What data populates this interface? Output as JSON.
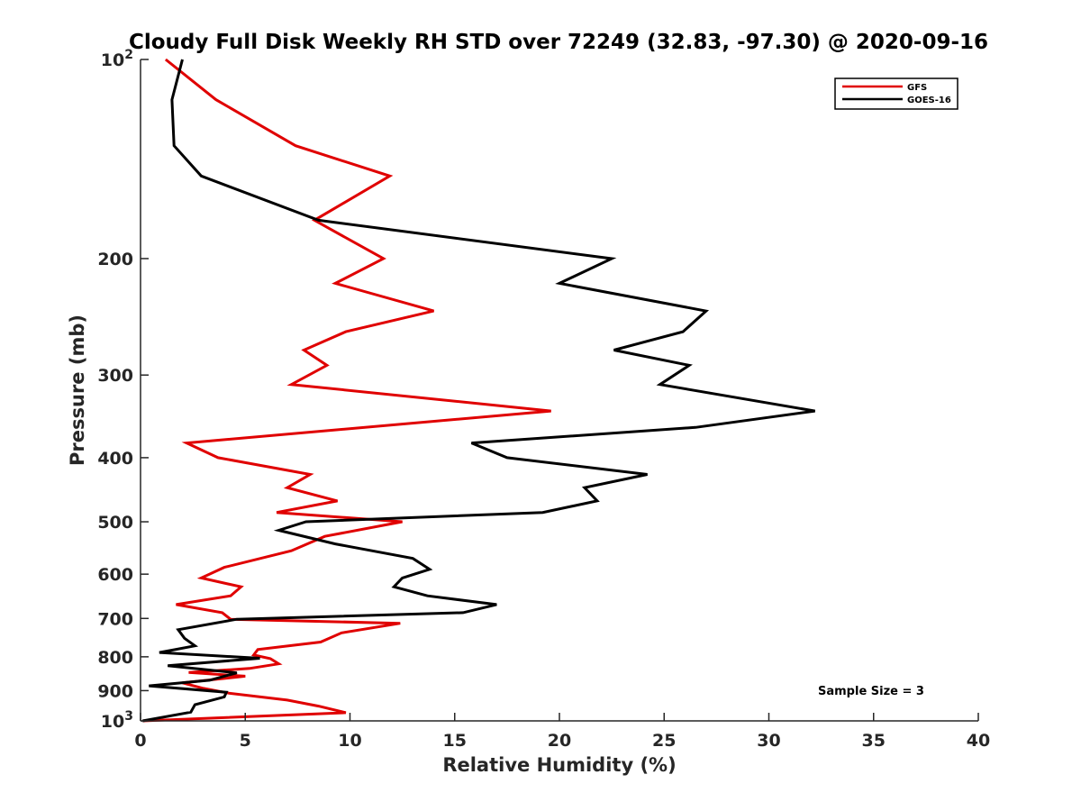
{
  "chart_data": {
    "type": "line",
    "title": "Cloudy Full Disk Weekly RH STD over 72249 (32.83, -97.30) @ 2020-09-16",
    "xlabel": "Relative Humidity (%)",
    "ylabel": "Pressure (mb)",
    "xlim": [
      0,
      40
    ],
    "ylim": [
      100,
      1000
    ],
    "y_scale": "log",
    "y_reversed": true,
    "x_ticks": [
      "0",
      "5",
      "10",
      "15",
      "20",
      "25",
      "30",
      "35",
      "40"
    ],
    "y_ticks": [
      {
        "value": 100,
        "base": "10",
        "exp": "2"
      },
      {
        "value": 200,
        "label": "200"
      },
      {
        "value": 300,
        "label": "300"
      },
      {
        "value": 400,
        "label": "400"
      },
      {
        "value": 500,
        "label": "500"
      },
      {
        "value": 600,
        "label": "600"
      },
      {
        "value": 700,
        "label": "700"
      },
      {
        "value": 800,
        "label": "800"
      },
      {
        "value": 900,
        "label": "900"
      },
      {
        "value": 1000,
        "base": "10",
        "exp": "3"
      }
    ],
    "grid": false,
    "legend_position": "top-right",
    "series": [
      {
        "name": "GFS",
        "color": "#e00000",
        "points": [
          [
            1.2,
            100
          ],
          [
            3.6,
            115
          ],
          [
            7.4,
            135
          ],
          [
            11.9,
            150
          ],
          [
            8.3,
            175
          ],
          [
            11.6,
            200
          ],
          [
            9.3,
            218
          ],
          [
            14.0,
            240
          ],
          [
            9.8,
            258
          ],
          [
            7.8,
            275
          ],
          [
            8.9,
            290
          ],
          [
            7.2,
            310
          ],
          [
            19.6,
            340
          ],
          [
            2.2,
            380
          ],
          [
            3.7,
            400
          ],
          [
            8.1,
            424
          ],
          [
            7.0,
            444
          ],
          [
            9.4,
            465
          ],
          [
            6.5,
            484
          ],
          [
            12.5,
            500
          ],
          [
            8.8,
            526
          ],
          [
            7.2,
            553
          ],
          [
            4.0,
            586
          ],
          [
            2.9,
            608
          ],
          [
            4.8,
            627
          ],
          [
            4.3,
            647
          ],
          [
            1.7,
            667
          ],
          [
            3.9,
            686
          ],
          [
            4.3,
            702
          ],
          [
            12.4,
            712
          ],
          [
            9.6,
            736
          ],
          [
            8.6,
            760
          ],
          [
            5.6,
            780
          ],
          [
            5.4,
            795
          ],
          [
            6.2,
            805
          ],
          [
            6.6,
            820
          ],
          [
            5.2,
            833
          ],
          [
            2.3,
            845
          ],
          [
            5.0,
            856
          ],
          [
            2.0,
            876
          ],
          [
            3.0,
            893
          ],
          [
            4.2,
            908
          ],
          [
            7.0,
            930
          ],
          [
            8.5,
            950
          ],
          [
            9.8,
            972
          ],
          [
            0.1,
            1000
          ]
        ]
      },
      {
        "name": "GOES-16",
        "color": "#000000",
        "points": [
          [
            2.0,
            100
          ],
          [
            1.5,
            115
          ],
          [
            1.6,
            135
          ],
          [
            2.9,
            150
          ],
          [
            8.5,
            175
          ],
          [
            22.5,
            200
          ],
          [
            20.0,
            218
          ],
          [
            27.0,
            240
          ],
          [
            25.9,
            258
          ],
          [
            22.6,
            275
          ],
          [
            26.2,
            290
          ],
          [
            24.8,
            310
          ],
          [
            32.2,
            340
          ],
          [
            26.5,
            360
          ],
          [
            15.8,
            380
          ],
          [
            17.5,
            400
          ],
          [
            24.2,
            424
          ],
          [
            21.2,
            444
          ],
          [
            21.8,
            465
          ],
          [
            19.2,
            484
          ],
          [
            7.9,
            500
          ],
          [
            6.6,
            515
          ],
          [
            9.3,
            540
          ],
          [
            13.0,
            568
          ],
          [
            13.8,
            590
          ],
          [
            12.5,
            608
          ],
          [
            12.1,
            627
          ],
          [
            13.7,
            647
          ],
          [
            17.0,
            667
          ],
          [
            15.4,
            686
          ],
          [
            4.6,
            702
          ],
          [
            1.8,
            728
          ],
          [
            2.1,
            750
          ],
          [
            2.6,
            770
          ],
          [
            0.9,
            788
          ],
          [
            5.7,
            804
          ],
          [
            1.3,
            825
          ],
          [
            4.6,
            846
          ],
          [
            3.3,
            868
          ],
          [
            0.4,
            885
          ],
          [
            4.1,
            905
          ],
          [
            4.0,
            920
          ],
          [
            2.6,
            945
          ],
          [
            2.4,
            970
          ],
          [
            0.1,
            1000
          ]
        ]
      }
    ],
    "annotation": "Sample Size = 3"
  }
}
